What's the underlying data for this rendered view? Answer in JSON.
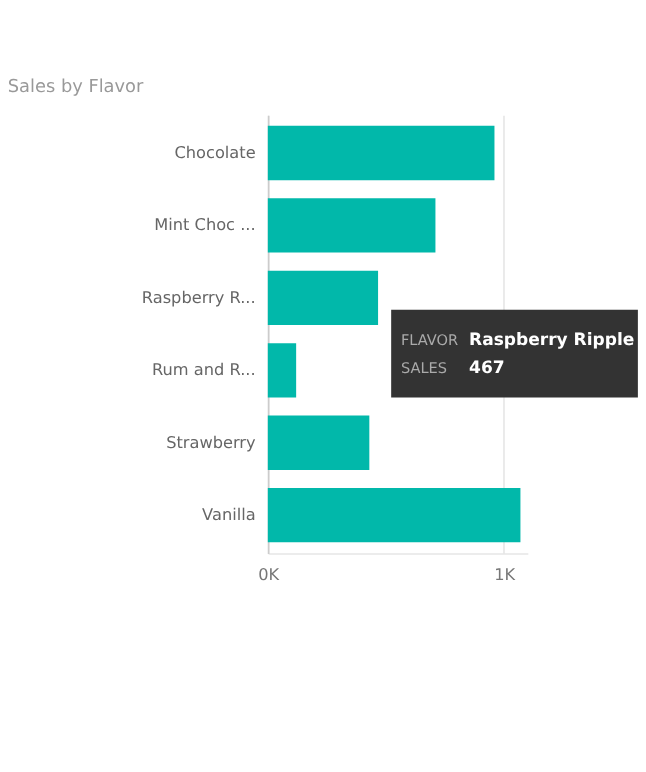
{
  "chart_data": {
    "type": "bar",
    "orientation": "horizontal",
    "title": "Sales by Flavor",
    "categories": [
      "Chocolate",
      "Mint Choc ...",
      "Raspberry R...",
      "Rum and R...",
      "Strawberry",
      "Vanilla"
    ],
    "values": [
      960,
      710,
      467,
      120,
      430,
      1070
    ],
    "color": "#01b8aa",
    "xlim": [
      0,
      1100
    ],
    "xticks": [
      {
        "value": 0,
        "label": "0K"
      },
      {
        "value": 1000,
        "label": "1K"
      }
    ],
    "grid": "x",
    "annotations": [
      "FLAVOR",
      "Raspberry Ripple",
      "SALES",
      "467"
    ]
  }
}
